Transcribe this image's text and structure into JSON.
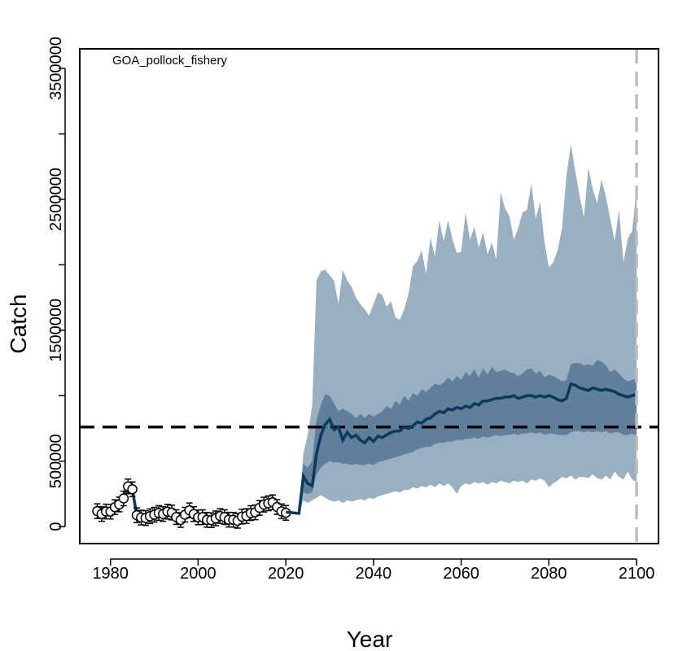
{
  "chart_data": {
    "type": "line",
    "title": "GOA_pollock_fishery",
    "xlabel": "Year",
    "ylabel": "Catch",
    "xlim": [
      1973,
      2105
    ],
    "ylim": [
      -130000,
      3650000
    ],
    "x_ticks": [
      1980,
      2000,
      2020,
      2040,
      2060,
      2080,
      2100
    ],
    "y_ticks": [
      0,
      500000,
      1000000,
      1500000,
      2000000,
      2500000,
      3000000,
      3500000
    ],
    "y_tick_labels": [
      "0",
      "500000",
      "",
      "1500000",
      "",
      "2500000",
      "",
      "3500000"
    ],
    "x_tick_labels": [
      "1980",
      "2000",
      "2020",
      "2040",
      "2060",
      "2080",
      "2100"
    ],
    "reference_line": {
      "value": 760000,
      "style": "dashed",
      "color": "#000000"
    },
    "vertical_reference": {
      "value": 2100,
      "style": "dashed",
      "color": "#bdbdbd"
    },
    "colors": {
      "outer_band": "#9aafc0",
      "inner_band": "#5f7f9c",
      "median_line": "#0b3a5c",
      "observed_points": "#ffffff"
    },
    "observed": {
      "x": [
        1977,
        1978,
        1979,
        1980,
        1981,
        1982,
        1983,
        1984,
        1985,
        1986,
        1987,
        1988,
        1989,
        1990,
        1991,
        1992,
        1993,
        1994,
        1995,
        1996,
        1997,
        1998,
        1999,
        2000,
        2001,
        2002,
        2003,
        2004,
        2005,
        2006,
        2007,
        2008,
        2009,
        2010,
        2011,
        2012,
        2013,
        2014,
        2015,
        2016,
        2017,
        2018,
        2019,
        2020
      ],
      "y": [
        118000,
        96000,
        115000,
        114000,
        148000,
        169000,
        215000,
        307000,
        285000,
        87000,
        69000,
        65000,
        79000,
        91000,
        104000,
        96000,
        114000,
        107000,
        72000,
        50000,
        91000,
        124000,
        95000,
        71000,
        72000,
        51000,
        49000,
        63000,
        81000,
        72000,
        53000,
        52000,
        44000,
        76000,
        81000,
        103000,
        109000,
        143000,
        168000,
        178000,
        186000,
        150000,
        116000,
        105000
      ]
    },
    "series": [
      {
        "name": "",
        "x": [
          2020,
          2021,
          2022,
          2023,
          2024,
          2025,
          2026,
          2027,
          2028,
          2029,
          2030,
          2031,
          2032,
          2033,
          2034,
          2035,
          2036,
          2037,
          2038,
          2039,
          2040,
          2041,
          2042,
          2043,
          2044,
          2045,
          2046,
          2047,
          2048,
          2049,
          2050,
          2051,
          2052,
          2053,
          2054,
          2055,
          2056,
          2057,
          2058,
          2059,
          2060,
          2061,
          2062,
          2063,
          2064,
          2065,
          2066,
          2067,
          2068,
          2069,
          2070,
          2071,
          2072,
          2073,
          2074,
          2075,
          2076,
          2077,
          2078,
          2079,
          2080,
          2081,
          2082,
          2083,
          2084,
          2085,
          2086,
          2087,
          2088,
          2089,
          2090,
          2091,
          2092,
          2093,
          2094,
          2095,
          2096,
          2097,
          2098,
          2099,
          2100
        ],
        "median": [
          110000,
          108000,
          104000,
          100000,
          385000,
          330000,
          310000,
          560000,
          700000,
          780000,
          820000,
          740000,
          760000,
          660000,
          720000,
          680000,
          700000,
          660000,
          640000,
          680000,
          650000,
          690000,
          680000,
          700000,
          720000,
          730000,
          730000,
          760000,
          750000,
          770000,
          800000,
          790000,
          820000,
          830000,
          860000,
          880000,
          870000,
          900000,
          890000,
          910000,
          900000,
          920000,
          910000,
          940000,
          930000,
          960000,
          960000,
          970000,
          980000,
          980000,
          990000,
          990000,
          1000000,
          980000,
          990000,
          1000000,
          1000000,
          990000,
          1000000,
          990000,
          1000000,
          990000,
          970000,
          960000,
          980000,
          1090000,
          1080000,
          1060000,
          1050000,
          1040000,
          1060000,
          1050000,
          1040000,
          1050000,
          1040000,
          1030000,
          1010000,
          1000000,
          990000,
          1000000,
          1010000
        ],
        "band_50_lower": [
          110000,
          108000,
          104000,
          100000,
          260000,
          250000,
          260000,
          400000,
          450000,
          480000,
          500000,
          490000,
          490000,
          480000,
          480000,
          470000,
          480000,
          470000,
          470000,
          480000,
          470000,
          490000,
          500000,
          510000,
          520000,
          530000,
          540000,
          550000,
          560000,
          570000,
          590000,
          600000,
          610000,
          610000,
          630000,
          640000,
          640000,
          650000,
          650000,
          660000,
          660000,
          670000,
          670000,
          680000,
          670000,
          690000,
          680000,
          690000,
          700000,
          690000,
          700000,
          700000,
          710000,
          700000,
          710000,
          710000,
          720000,
          710000,
          720000,
          700000,
          710000,
          710000,
          700000,
          700000,
          700000,
          720000,
          730000,
          730000,
          720000,
          730000,
          720000,
          730000,
          720000,
          730000,
          710000,
          720000,
          720000,
          700000,
          700000,
          710000,
          700000
        ],
        "band_50_upper": [
          110000,
          108000,
          104000,
          100000,
          480000,
          450000,
          500000,
          820000,
          930000,
          1010000,
          1000000,
          940000,
          880000,
          900000,
          880000,
          860000,
          830000,
          860000,
          830000,
          860000,
          840000,
          860000,
          880000,
          920000,
          900000,
          960000,
          930000,
          1000000,
          960000,
          1020000,
          1000000,
          1050000,
          1030000,
          1060000,
          1090000,
          1080000,
          1100000,
          1140000,
          1110000,
          1150000,
          1120000,
          1180000,
          1150000,
          1200000,
          1140000,
          1210000,
          1160000,
          1220000,
          1180000,
          1190000,
          1200000,
          1180000,
          1170000,
          1150000,
          1170000,
          1200000,
          1210000,
          1170000,
          1190000,
          1140000,
          1160000,
          1150000,
          1130000,
          1110000,
          1120000,
          1240000,
          1250000,
          1250000,
          1230000,
          1240000,
          1230000,
          1270000,
          1260000,
          1230000,
          1180000,
          1200000,
          1170000,
          1130000,
          1110000,
          1120000,
          1130000
        ],
        "band_90_lower": [
          110000,
          108000,
          104000,
          100000,
          200000,
          180000,
          200000,
          220000,
          240000,
          220000,
          200000,
          190000,
          200000,
          180000,
          200000,
          190000,
          200000,
          210000,
          200000,
          220000,
          210000,
          230000,
          240000,
          250000,
          260000,
          270000,
          260000,
          280000,
          280000,
          300000,
          290000,
          310000,
          300000,
          320000,
          300000,
          330000,
          310000,
          330000,
          300000,
          250000,
          310000,
          330000,
          320000,
          340000,
          330000,
          340000,
          320000,
          340000,
          330000,
          350000,
          340000,
          330000,
          350000,
          340000,
          350000,
          330000,
          360000,
          350000,
          370000,
          350000,
          300000,
          330000,
          350000,
          380000,
          370000,
          390000,
          360000,
          380000,
          380000,
          370000,
          400000,
          370000,
          360000,
          390000,
          360000,
          420000,
          380000,
          360000,
          420000,
          360000,
          340000
        ],
        "band_90_upper": [
          110000,
          108000,
          104000,
          100000,
          560000,
          700000,
          920000,
          1880000,
          1950000,
          1960000,
          1920000,
          1880000,
          1700000,
          1960000,
          1880000,
          1830000,
          1750000,
          1700000,
          1660000,
          1610000,
          1700000,
          1790000,
          1770000,
          1680000,
          1720000,
          1600000,
          1580000,
          1660000,
          1780000,
          1990000,
          2030000,
          2110000,
          1930000,
          2210000,
          2060000,
          2340000,
          2180000,
          2340000,
          2200000,
          2090000,
          2100000,
          2400000,
          2190000,
          2290000,
          2130000,
          2250000,
          2080000,
          2170000,
          2040000,
          2550000,
          2430000,
          2370000,
          2190000,
          2280000,
          2400000,
          2420000,
          2620000,
          2350000,
          2480000,
          2170000,
          1980000,
          2020000,
          2110000,
          2280000,
          2680000,
          2920000,
          2720000,
          2530000,
          2360000,
          2740000,
          2580000,
          2470000,
          2650000,
          2520000,
          2350000,
          2180000,
          2420000,
          2020000,
          2200000,
          2260000,
          2580000
        ]
      }
    ]
  }
}
